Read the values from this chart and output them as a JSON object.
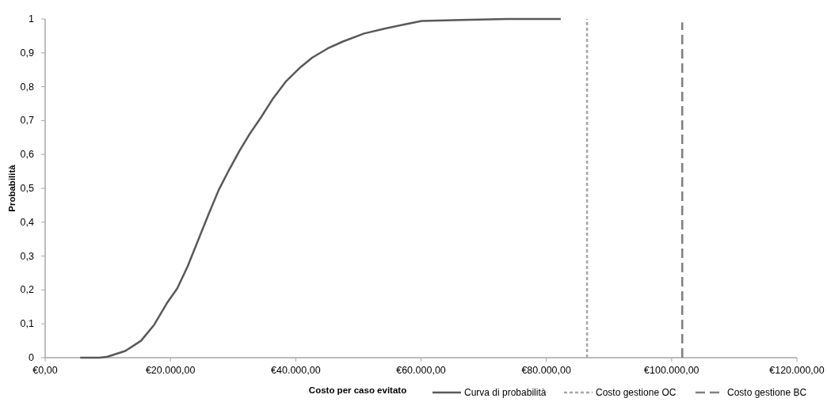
{
  "chart_data": {
    "type": "line",
    "xlabel": "Costo per caso evitato",
    "ylabel": "Probabilità",
    "xlim": [
      0,
      120000
    ],
    "xticks": [
      {
        "value": 0,
        "label": "€0,00"
      },
      {
        "value": 20000,
        "label": "€20.000,00"
      },
      {
        "value": 40000,
        "label": "€40.000,00"
      },
      {
        "value": 60000,
        "label": "€60.000,00"
      },
      {
        "value": 80000,
        "label": "€80.000,00"
      },
      {
        "value": 100000,
        "label": "€100.000,00"
      },
      {
        "value": 120000,
        "label": "€120.000,00"
      }
    ],
    "ylim": [
      0,
      1
    ],
    "yticks": [
      0,
      {
        "value": 0.1,
        "label": "0,1"
      },
      {
        "value": 0.2,
        "label": "0,2"
      },
      {
        "value": 0.3,
        "label": "0,3"
      },
      {
        "value": 0.4,
        "label": "0,4"
      },
      {
        "value": 0.5,
        "label": "0,5"
      },
      {
        "value": 0.6,
        "label": "0,6"
      },
      {
        "value": 0.7,
        "label": "0,7"
      },
      {
        "value": 0.8,
        "label": "0,8"
      },
      {
        "value": 0.9,
        "label": "0,9"
      },
      1
    ],
    "grid": false,
    "legend": "bottom right",
    "marker": "none",
    "series": [
      {
        "name": "Curva di probabilità",
        "color": "#595959",
        "line_style": "solid",
        "x": [
          5600,
          8700,
          9950,
          12800,
          15300,
          17400,
          19400,
          21100,
          22750,
          24400,
          26100,
          27700,
          29400,
          31000,
          32700,
          34400,
          36400,
          38500,
          40600,
          42650,
          45100,
          47600,
          50900,
          54300,
          57600,
          60100,
          66300,
          73700,
          82300
        ],
        "values": [
          0,
          0,
          0.003,
          0.02,
          0.05,
          0.097,
          0.16,
          0.205,
          0.27,
          0.346,
          0.424,
          0.495,
          0.556,
          0.61,
          0.662,
          0.708,
          0.766,
          0.817,
          0.855,
          0.886,
          0.913,
          0.934,
          0.957,
          0.972,
          0.985,
          0.994,
          0.997,
          1,
          1
        ]
      },
      {
        "name": "Costo gestione OC",
        "color": "#a6a6a6",
        "line_style": "dotted",
        "x": [
          86500,
          86500
        ],
        "values": [
          0,
          1
        ]
      },
      {
        "name": "Costo gestione BC",
        "color": "#7f7f7f",
        "line_style": "dashed",
        "x": [
          101700,
          101700
        ],
        "values": [
          0,
          0.99
        ]
      }
    ]
  }
}
